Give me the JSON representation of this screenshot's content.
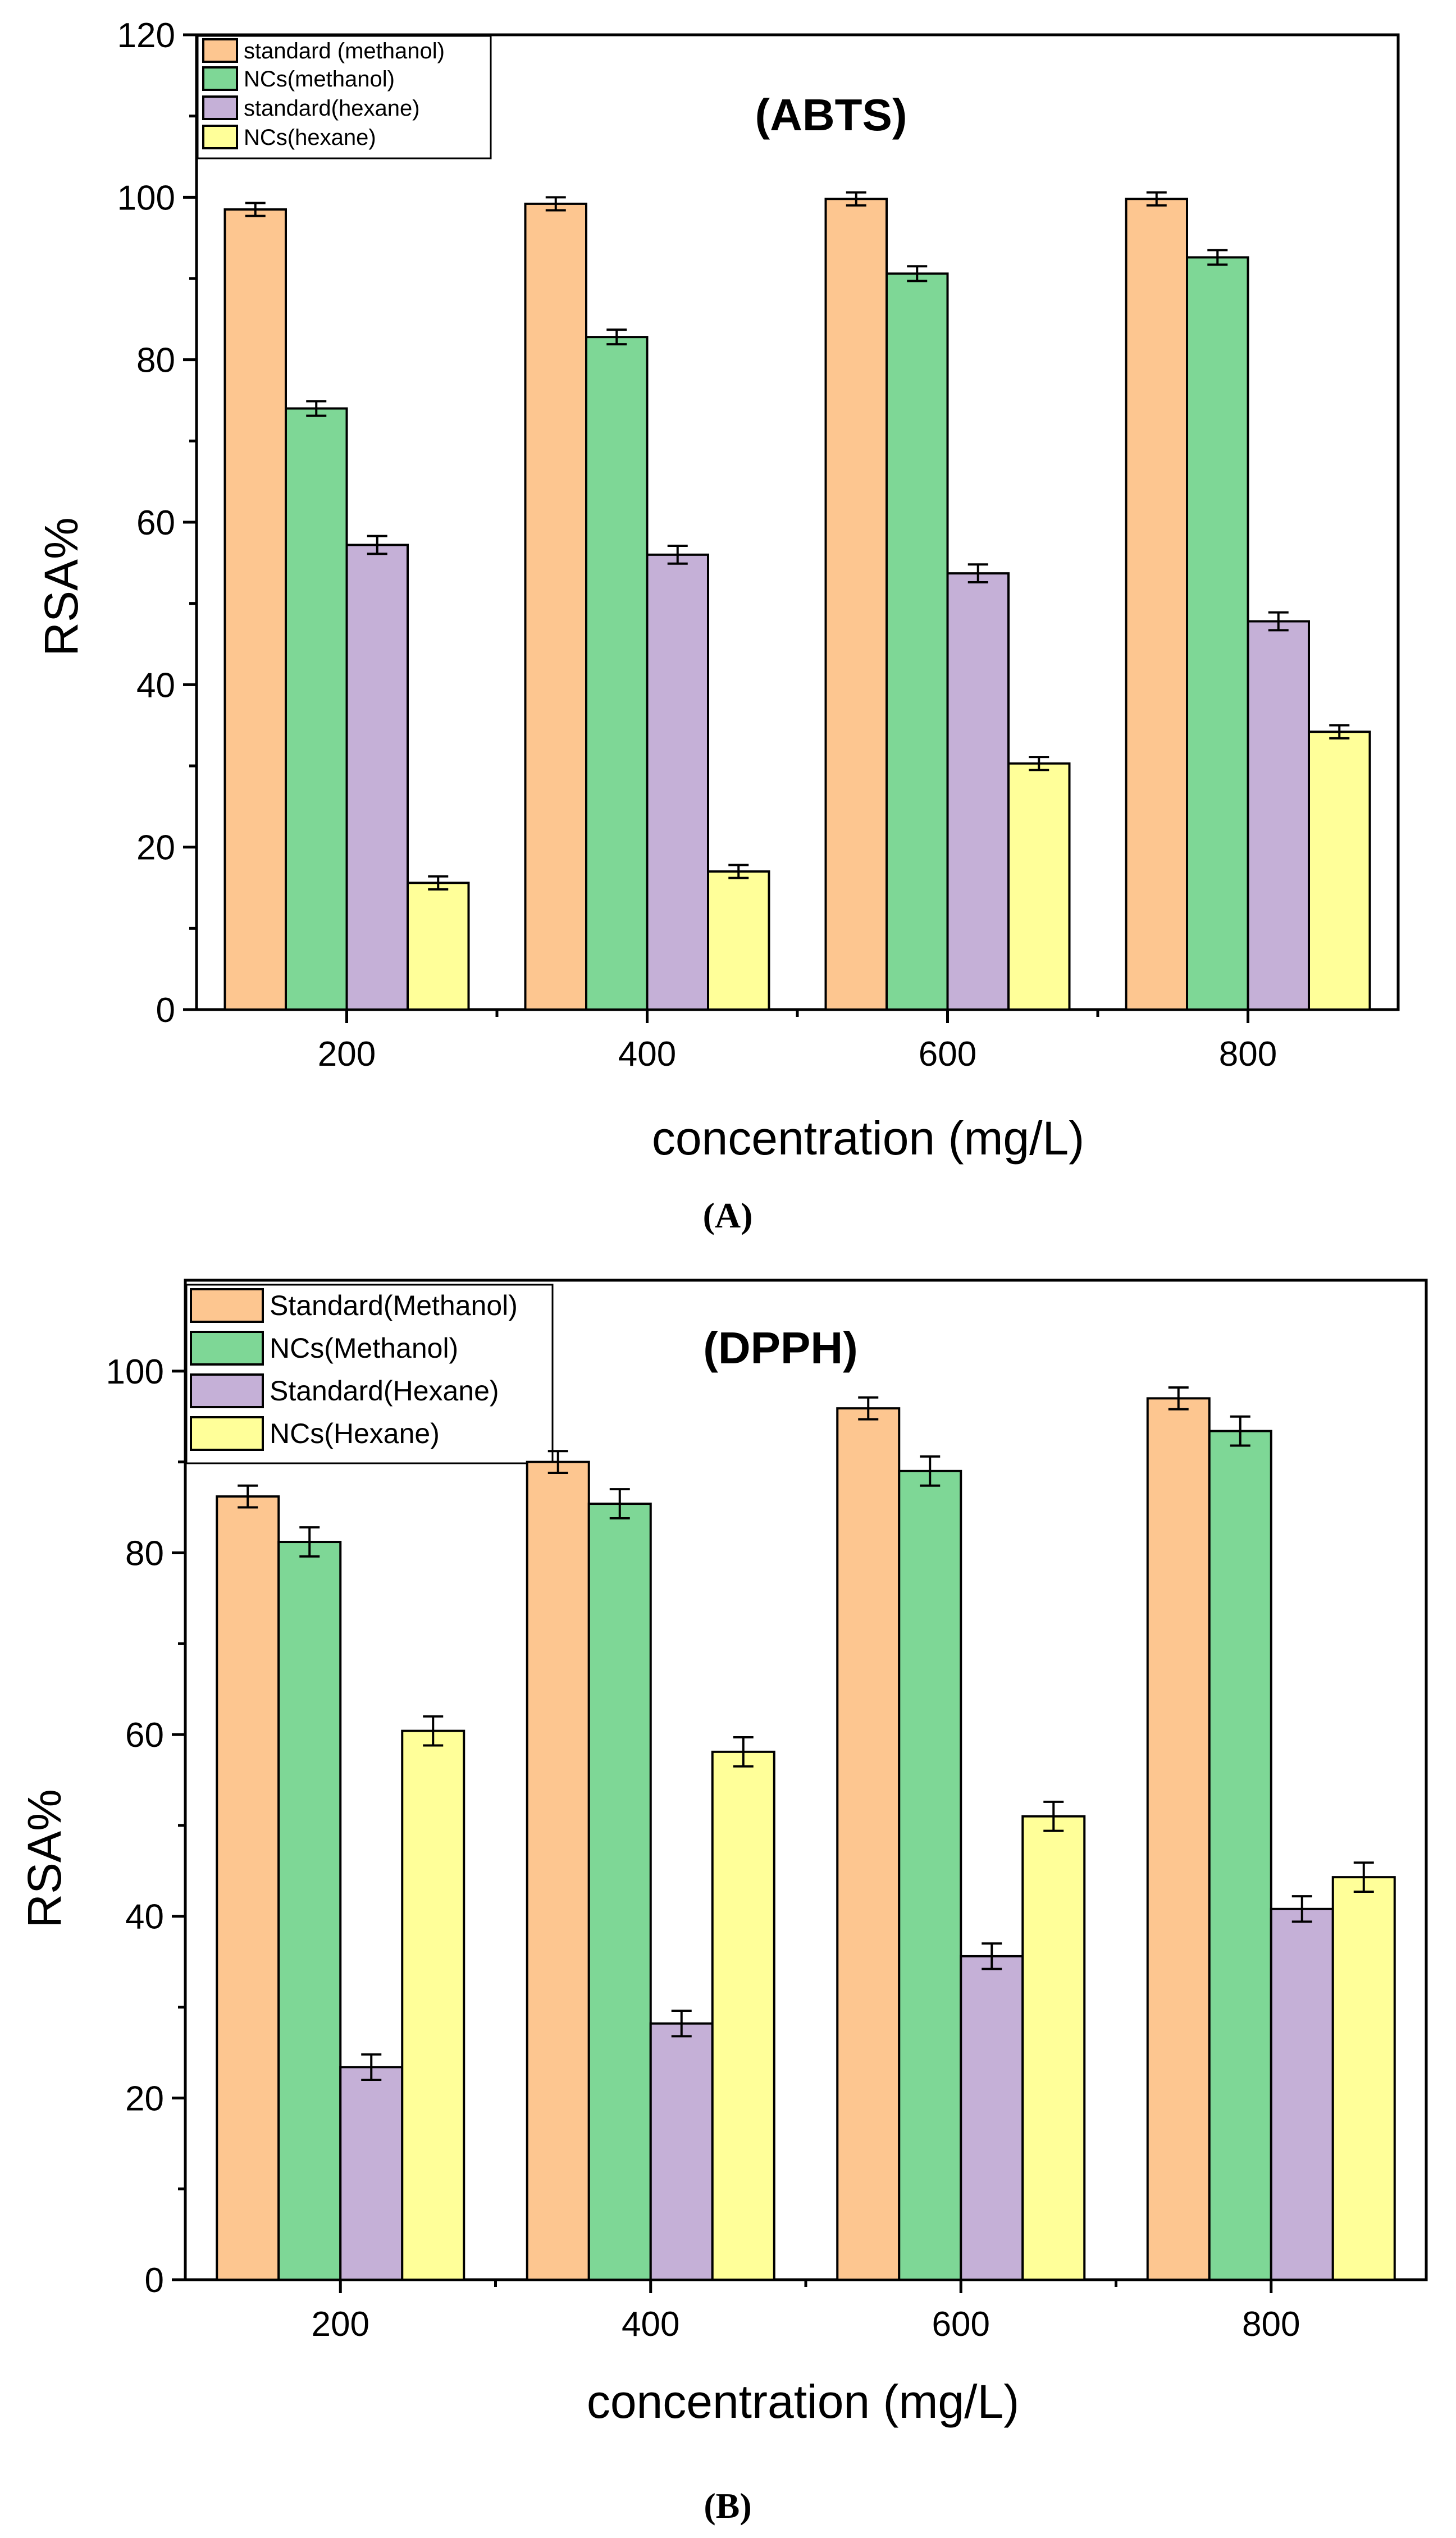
{
  "chart_data": [
    {
      "type": "bar",
      "title": "(ABTS)",
      "xlabel": "concentration (mg/L)",
      "ylabel": "RSA%",
      "ylim": [
        0,
        120
      ],
      "yticks": [
        0,
        20,
        40,
        60,
        80,
        100,
        120
      ],
      "categories": [
        "200",
        "400",
        "600",
        "800"
      ],
      "caption": "(A)",
      "legend_position": "top-left",
      "series": [
        {
          "name": "standard (methanol)",
          "color": "#FDC690",
          "values": [
            98.5,
            99.2,
            99.8,
            99.8
          ],
          "errors": [
            0.8,
            0.8,
            0.8,
            0.8
          ]
        },
        {
          "name": "NCs(methanol)",
          "color": "#7ED796",
          "values": [
            74,
            82.8,
            90.6,
            92.6
          ],
          "errors": [
            0.9,
            0.9,
            0.9,
            0.9
          ]
        },
        {
          "name": "standard(hexane)",
          "color": "#C5B0D7",
          "values": [
            57.2,
            56,
            53.7,
            47.8
          ],
          "errors": [
            1.1,
            1.1,
            1.1,
            1.1
          ]
        },
        {
          "name": "NCs(hexane)",
          "color": "#FFFF99",
          "values": [
            15.6,
            17,
            30.3,
            34.2
          ],
          "errors": [
            0.8,
            0.8,
            0.8,
            0.8
          ]
        }
      ]
    },
    {
      "type": "bar",
      "title": "(DPPH)",
      "xlabel": "concentration (mg/L)",
      "ylabel": "RSA%",
      "ylim": [
        0,
        110
      ],
      "yticks": [
        0,
        20,
        40,
        60,
        80,
        100
      ],
      "categories": [
        "200",
        "400",
        "600",
        "800"
      ],
      "caption": "(B)",
      "legend_position": "top-left",
      "series": [
        {
          "name": "Standard(Methanol)",
          "color": "#FDC690",
          "values": [
            86.2,
            90,
            95.9,
            97
          ],
          "errors": [
            1.2,
            1.2,
            1.2,
            1.2
          ]
        },
        {
          "name": "NCs(Methanol)",
          "color": "#7ED796",
          "values": [
            81.2,
            85.4,
            89,
            93.4
          ],
          "errors": [
            1.6,
            1.6,
            1.6,
            1.6
          ]
        },
        {
          "name": "Standard(Hexane)",
          "color": "#C5B0D7",
          "values": [
            23.4,
            28.2,
            35.6,
            40.8
          ],
          "errors": [
            1.4,
            1.4,
            1.4,
            1.4
          ]
        },
        {
          "name": "NCs(Hexane)",
          "color": "#FFFF99",
          "values": [
            60.4,
            58.1,
            51,
            44.3
          ],
          "errors": [
            1.6,
            1.6,
            1.6,
            1.6
          ]
        }
      ]
    }
  ]
}
